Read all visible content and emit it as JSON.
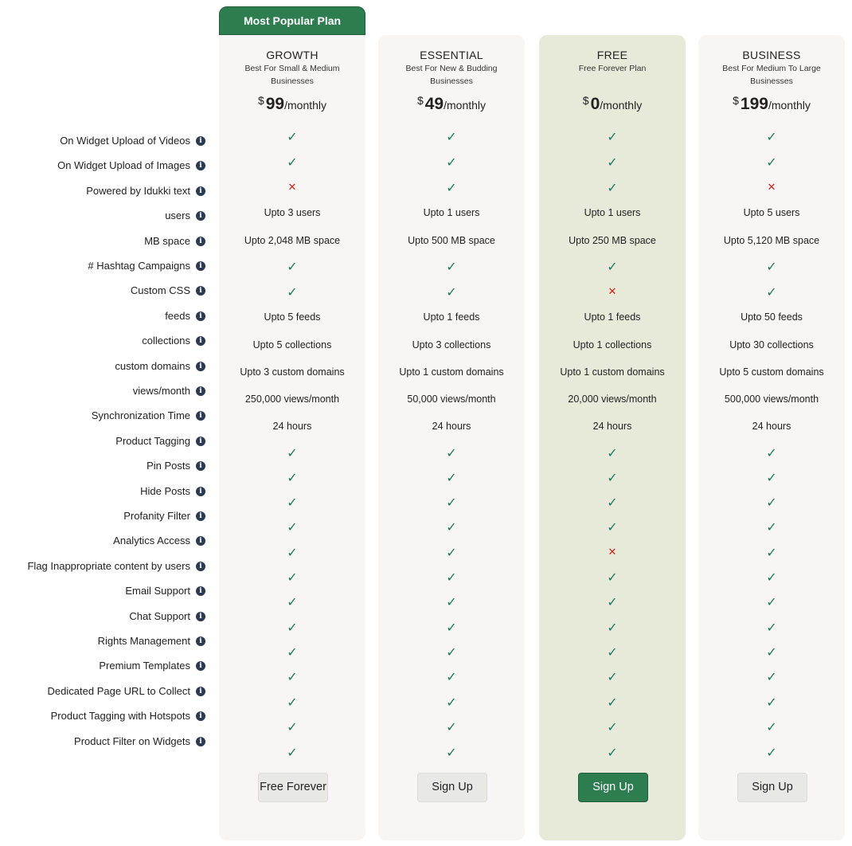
{
  "popular_badge": "Most Popular Plan",
  "colors": {
    "accent": "#2e7d50",
    "check": "#1f7a5c",
    "cross": "#d0201c",
    "free_bg": "#e7ead8",
    "card_bg": "#f7f6f4"
  },
  "plans": [
    {
      "name": "GROWTH",
      "tagline": "Best For Small & Medium Businesses",
      "currency": "$",
      "price": "99",
      "period": "/monthly",
      "button": "Free Forever"
    },
    {
      "name": "ESSENTIAL",
      "tagline": "Best For New & Budding Businesses",
      "currency": "$",
      "price": "49",
      "period": "/monthly",
      "button": "Sign Up"
    },
    {
      "name": "FREE",
      "tagline": "Free Forever Plan",
      "currency": "$",
      "price": "0",
      "period": "/monthly",
      "button": "Sign Up"
    },
    {
      "name": "BUSINESS",
      "tagline": "Best For Medium To Large Businesses",
      "currency": "$",
      "price": "199",
      "period": "/monthly",
      "button": "Sign Up"
    }
  ],
  "info_icon": "i",
  "check_icon": "✓",
  "cross_icon": "✕",
  "features": [
    {
      "label": "On Widget Upload of Videos",
      "values": [
        "check",
        "check",
        "check",
        "check"
      ]
    },
    {
      "label": "On Widget Upload of Images",
      "values": [
        "check",
        "check",
        "check",
        "check"
      ]
    },
    {
      "label": "Powered by Idukki text",
      "values": [
        "cross",
        "check",
        "check",
        "cross"
      ]
    },
    {
      "label": "users",
      "values": [
        "Upto 3 users",
        "Upto 1 users",
        "Upto 1 users",
        "Upto 5 users"
      ]
    },
    {
      "label": "MB space",
      "values": [
        "Upto 2,048 MB space",
        "Upto 500 MB space",
        "Upto 250 MB space",
        "Upto 5,120 MB space"
      ]
    },
    {
      "label": "# Hashtag Campaigns",
      "values": [
        "check",
        "check",
        "check",
        "check"
      ]
    },
    {
      "label": "Custom CSS",
      "values": [
        "check",
        "check",
        "cross",
        "check"
      ]
    },
    {
      "label": "feeds",
      "values": [
        "Upto 5 feeds",
        "Upto 1 feeds",
        "Upto 1 feeds",
        "Upto 50 feeds"
      ]
    },
    {
      "label": "collections",
      "values": [
        "Upto 5 collections",
        "Upto 3 collections",
        "Upto 1 collections",
        "Upto 30 collections"
      ]
    },
    {
      "label": "custom domains",
      "values": [
        "Upto 3 custom domains",
        "Upto 1 custom domains",
        "Upto 1 custom domains",
        "Upto 5 custom domains"
      ]
    },
    {
      "label": "views/month",
      "values": [
        "250,000 views/month",
        "50,000 views/month",
        "20,000 views/month",
        "500,000 views/month"
      ]
    },
    {
      "label": "Synchronization Time",
      "values": [
        "24 hours",
        "24 hours",
        "24 hours",
        "24 hours"
      ]
    },
    {
      "label": "Product Tagging",
      "values": [
        "check",
        "check",
        "check",
        "check"
      ]
    },
    {
      "label": "Pin Posts",
      "values": [
        "check",
        "check",
        "check",
        "check"
      ]
    },
    {
      "label": "Hide Posts",
      "values": [
        "check",
        "check",
        "check",
        "check"
      ]
    },
    {
      "label": "Profanity Filter",
      "values": [
        "check",
        "check",
        "check",
        "check"
      ]
    },
    {
      "label": "Analytics Access",
      "values": [
        "check",
        "check",
        "cross",
        "check"
      ]
    },
    {
      "label": "Flag Inappropriate content by users",
      "values": [
        "check",
        "check",
        "check",
        "check"
      ]
    },
    {
      "label": "Email Support",
      "values": [
        "check",
        "check",
        "check",
        "check"
      ]
    },
    {
      "label": "Chat Support",
      "values": [
        "check",
        "check",
        "check",
        "check"
      ]
    },
    {
      "label": "Rights Management",
      "values": [
        "check",
        "check",
        "check",
        "check"
      ]
    },
    {
      "label": "Premium Templates",
      "values": [
        "check",
        "check",
        "check",
        "check"
      ]
    },
    {
      "label": "Dedicated Page URL to Collect",
      "values": [
        "check",
        "check",
        "check",
        "check"
      ]
    },
    {
      "label": "Product Tagging with Hotspots",
      "values": [
        "check",
        "check",
        "check",
        "check"
      ]
    },
    {
      "label": "Product Filter on Widgets",
      "values": [
        "check",
        "check",
        "check",
        "check"
      ]
    }
  ]
}
